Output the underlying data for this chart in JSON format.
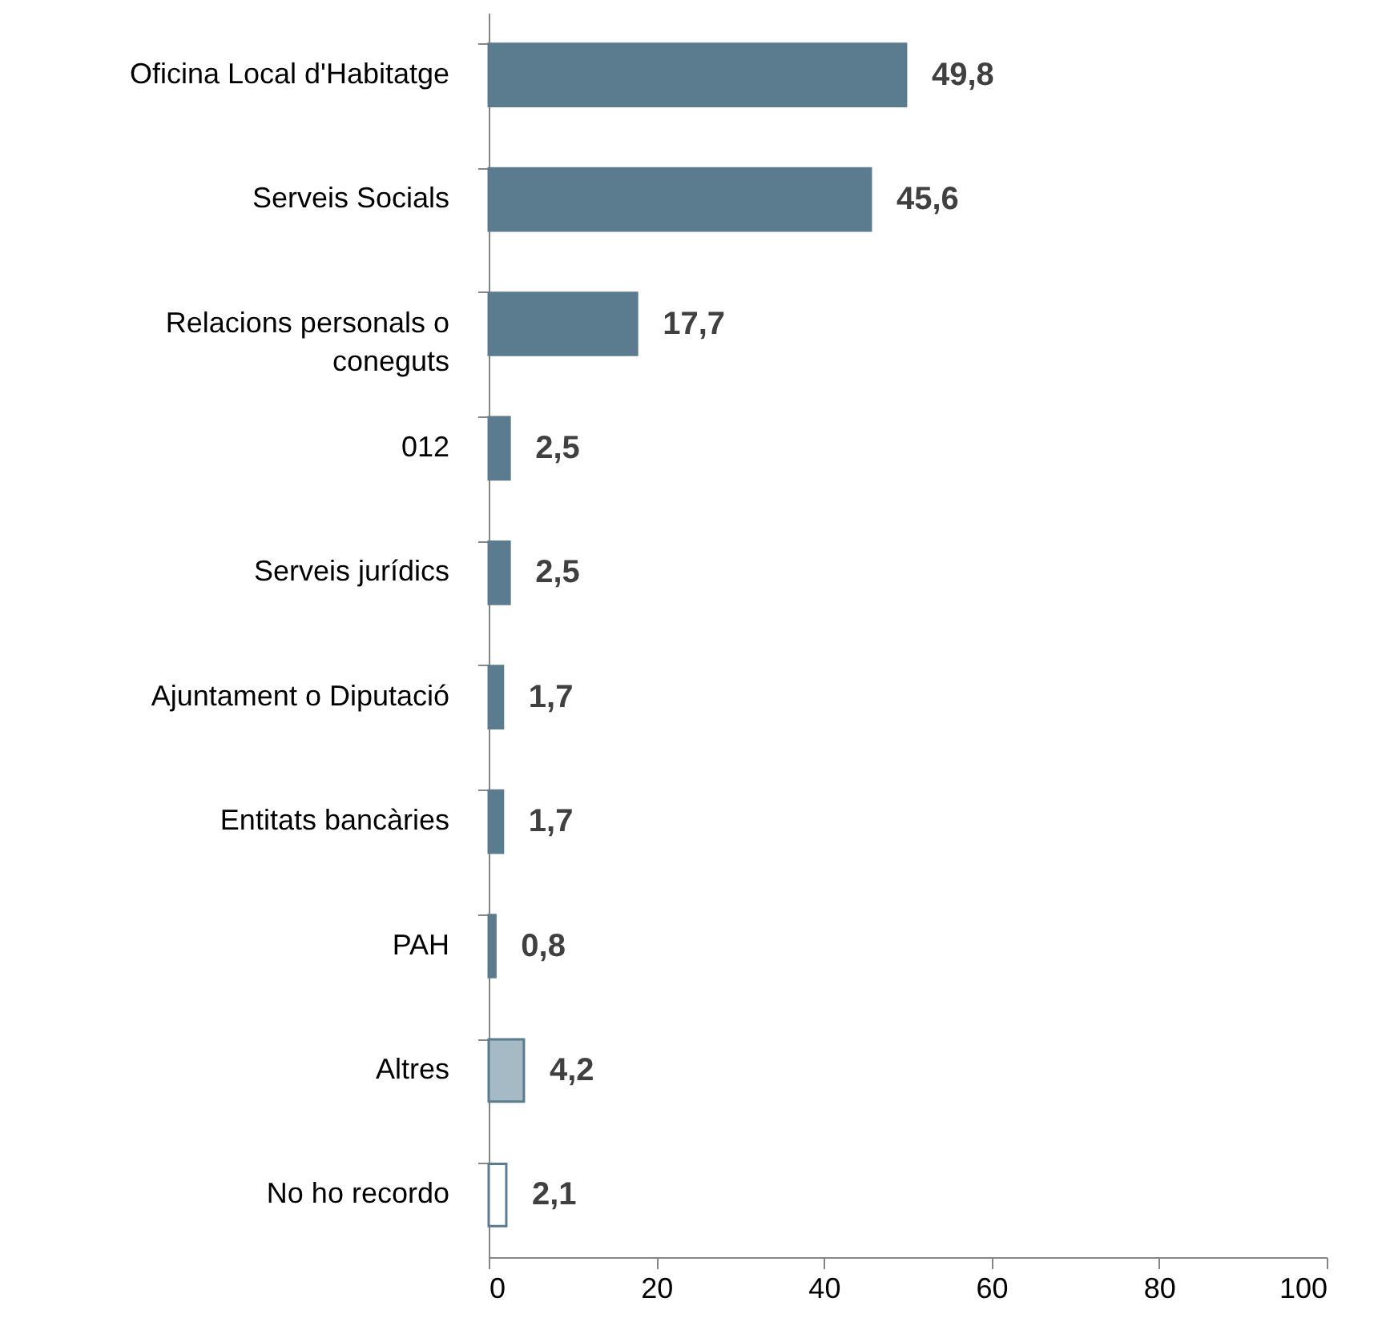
{
  "chart_data": {
    "type": "bar",
    "orientation": "horizontal",
    "categories": [
      "Oficina Local d'Habitatge",
      "Serveis Socials",
      "Relacions personals o coneguts",
      "012",
      "Serveis jurídics",
      "Ajuntament o Diputació",
      "Entitats bancàries",
      "PAH",
      "Altres",
      "No ho recordo"
    ],
    "values": [
      49.8,
      45.6,
      17.7,
      2.5,
      2.5,
      1.7,
      1.7,
      0.8,
      4.2,
      2.1
    ],
    "value_labels": [
      "49,8",
      "45,6",
      "17,7",
      "2,5",
      "2,5",
      "1,7",
      "1,7",
      "0,8",
      "4,2",
      "2,1"
    ],
    "colors": [
      "#5b7b8e",
      "#5b7b8e",
      "#5b7b8e",
      "#5b7b8e",
      "#5b7b8e",
      "#5b7b8e",
      "#5b7b8e",
      "#5b7b8e",
      "#a6bac6",
      "#ffffff"
    ],
    "xlim": [
      0,
      100
    ],
    "xticks": [
      0,
      20,
      40,
      60,
      80,
      100
    ],
    "grid": false
  }
}
